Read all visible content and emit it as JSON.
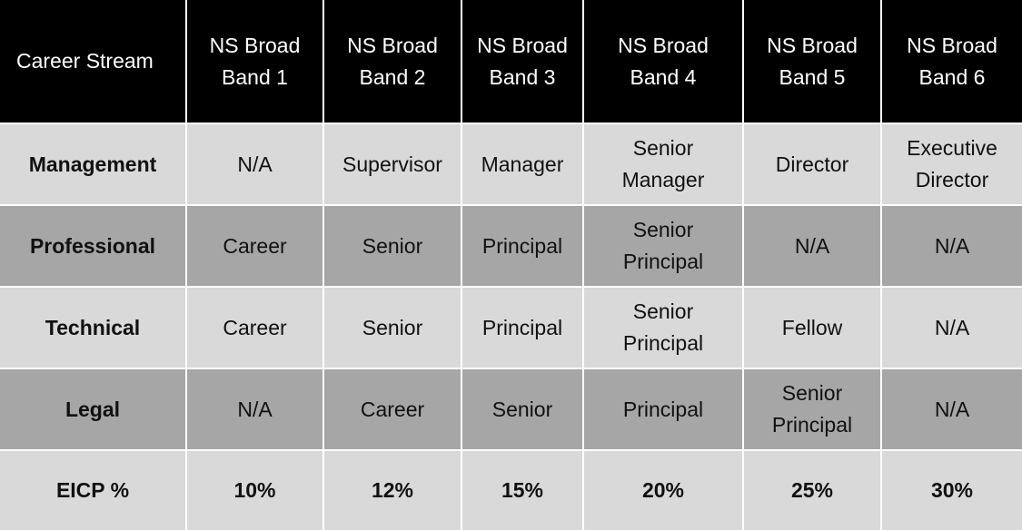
{
  "table": {
    "header": [
      "Career Stream",
      "NS Broad Band 1",
      "NS Broad Band 2",
      "NS Broad Band 3",
      "NS Broad Band 4",
      "NS Broad Band 5",
      "NS Broad Band 6"
    ],
    "rows": [
      [
        "Management",
        "N/A",
        "Supervisor",
        "Manager",
        "Senior Manager",
        "Director",
        "Executive Director"
      ],
      [
        "Professional",
        "Career",
        "Senior",
        "Principal",
        "Senior Principal",
        "N/A",
        "N/A"
      ],
      [
        "Technical",
        "Career",
        "Senior",
        "Principal",
        "Senior Principal",
        "Fellow",
        "N/A"
      ],
      [
        "Legal",
        "N/A",
        "Career",
        "Senior",
        "Principal",
        "Senior Principal",
        "N/A"
      ],
      [
        "EICP %",
        "10%",
        "12%",
        "15%",
        "20%",
        "25%",
        "30%"
      ]
    ]
  }
}
